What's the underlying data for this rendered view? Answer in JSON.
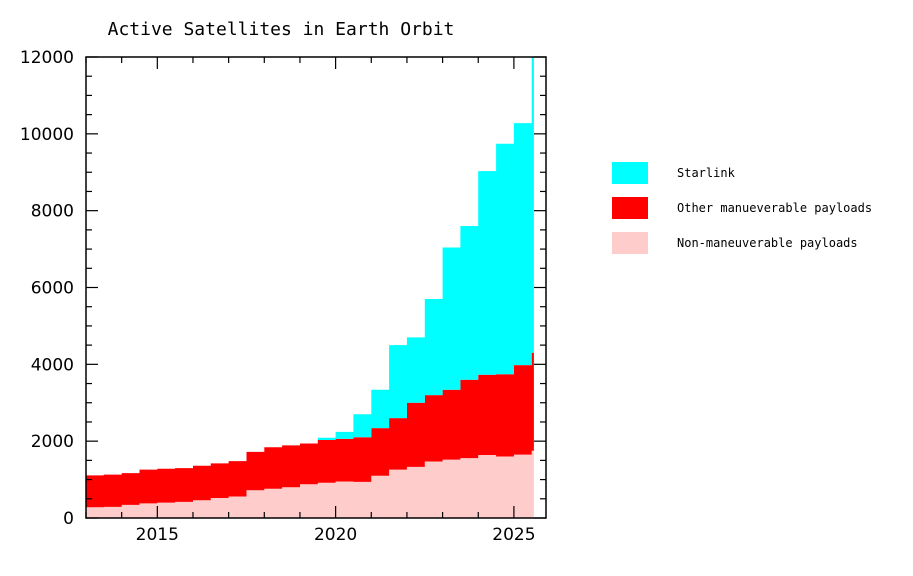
{
  "chart_data": {
    "type": "area",
    "title": "Active Satellites in Earth Orbit",
    "xlabel": "",
    "ylabel": "",
    "xlim": [
      2013.0,
      2025.9
    ],
    "ylim": [
      0,
      12000
    ],
    "x_ticks": [
      2015,
      2020,
      2025
    ],
    "y_ticks": [
      0,
      2000,
      4000,
      6000,
      8000,
      10000,
      12000
    ],
    "stacked": true,
    "legend_position": "right",
    "x": [
      2013.0,
      2013.5,
      2014.0,
      2014.5,
      2015.0,
      2015.5,
      2016.0,
      2016.5,
      2017.0,
      2017.5,
      2018.0,
      2018.5,
      2019.0,
      2019.5,
      2020.0,
      2020.5,
      2021.0,
      2021.5,
      2022.0,
      2022.5,
      2023.0,
      2023.5,
      2024.0,
      2024.5,
      2025.0,
      2025.5
    ],
    "series": [
      {
        "name": "Non-maneuverable payloads",
        "color": "#ffcccc",
        "values": [
          280,
          290,
          340,
          380,
          400,
          420,
          460,
          520,
          560,
          720,
          760,
          800,
          880,
          920,
          950,
          940,
          1100,
          1260,
          1330,
          1470,
          1520,
          1560,
          1640,
          1600,
          1650,
          1750
        ]
      },
      {
        "name": "Other manueverable payloads",
        "color": "#ff0000",
        "values": [
          830,
          840,
          830,
          880,
          880,
          880,
          900,
          900,
          920,
          1000,
          1080,
          1090,
          1060,
          1110,
          1110,
          1160,
          1240,
          1340,
          1670,
          1730,
          1820,
          2040,
          2090,
          2140,
          2330,
          2550
        ]
      },
      {
        "name": "Starlink",
        "color": "#00ffff",
        "values": [
          0,
          0,
          0,
          0,
          0,
          0,
          0,
          0,
          0,
          0,
          0,
          0,
          0,
          60,
          180,
          600,
          1000,
          1900,
          1700,
          2500,
          3700,
          4000,
          5300,
          6000,
          6300,
          7700
        ]
      }
    ]
  }
}
